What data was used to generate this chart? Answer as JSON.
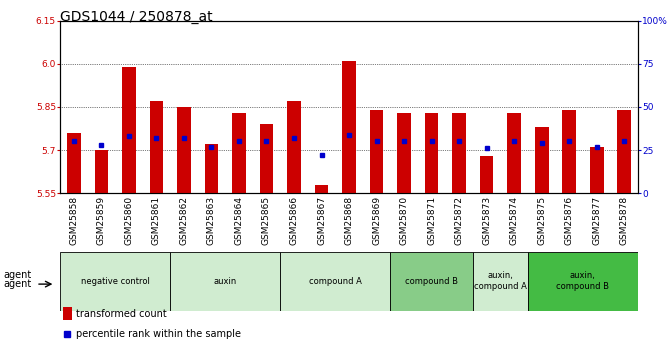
{
  "title": "GDS1044 / 250878_at",
  "samples": [
    "GSM25858",
    "GSM25859",
    "GSM25860",
    "GSM25861",
    "GSM25862",
    "GSM25863",
    "GSM25864",
    "GSM25865",
    "GSM25866",
    "GSM25867",
    "GSM25868",
    "GSM25869",
    "GSM25870",
    "GSM25871",
    "GSM25872",
    "GSM25873",
    "GSM25874",
    "GSM25875",
    "GSM25876",
    "GSM25877",
    "GSM25878"
  ],
  "red_values": [
    5.76,
    5.7,
    5.99,
    5.87,
    5.85,
    5.72,
    5.83,
    5.79,
    5.87,
    5.58,
    6.01,
    5.84,
    5.83,
    5.83,
    5.83,
    5.68,
    5.83,
    5.78,
    5.84,
    5.71,
    5.84
  ],
  "blue_pct": [
    30,
    28,
    33,
    32,
    32,
    27,
    30,
    30,
    32,
    22,
    34,
    30,
    30,
    30,
    30,
    26,
    30,
    29,
    30,
    27,
    30
  ],
  "ymin": 5.55,
  "ymax": 6.15,
  "y_ticks": [
    5.55,
    5.7,
    5.85,
    6.0,
    6.15
  ],
  "right_yticks": [
    0,
    25,
    50,
    75,
    100
  ],
  "right_ytick_labels": [
    "0",
    "25",
    "50",
    "75",
    "100%"
  ],
  "groups": [
    {
      "label": "negative control",
      "start": 0,
      "end": 4,
      "color": "#d0ecd0"
    },
    {
      "label": "auxin",
      "start": 4,
      "end": 8,
      "color": "#d0ecd0"
    },
    {
      "label": "compound A",
      "start": 8,
      "end": 12,
      "color": "#d0ecd0"
    },
    {
      "label": "compound B",
      "start": 12,
      "end": 15,
      "color": "#88cc88"
    },
    {
      "label": "auxin,\ncompound A",
      "start": 15,
      "end": 17,
      "color": "#d0ecd0"
    },
    {
      "label": "auxin,\ncompound B",
      "start": 17,
      "end": 21,
      "color": "#44bb44"
    }
  ],
  "bar_color": "#cc0000",
  "blue_color": "#0000cc",
  "bar_width": 0.5,
  "grid_color": "#000000",
  "plot_bg": "#ffffff",
  "xtick_bg": "#d8d8d8",
  "title_fontsize": 10,
  "tick_fontsize": 6.5,
  "label_color_left": "#cc0000",
  "label_color_right": "#0000cc"
}
